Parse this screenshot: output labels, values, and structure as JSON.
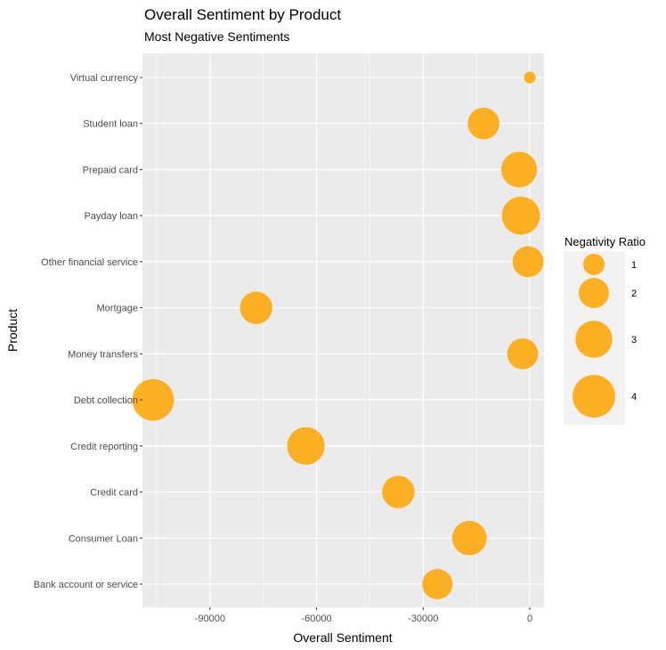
{
  "chart_data": {
    "type": "scatter",
    "title": "Overall Sentiment by Product",
    "subtitle": "Most Negative Sentiments",
    "xlabel": "Overall Sentiment",
    "ylabel": "Product",
    "xlim": [
      -109000,
      4000
    ],
    "xticks": [
      -90000,
      -60000,
      -30000,
      0
    ],
    "xtick_labels": [
      "-90000",
      "-60000",
      "-30000",
      "0"
    ],
    "grid": true,
    "point_color": "#ffa500",
    "panel_color": "#ebebeb",
    "legend": {
      "title": "Negativity Ratio",
      "placement": "right",
      "entries": [
        {
          "label": "1",
          "value": 1
        },
        {
          "label": "2",
          "value": 2
        },
        {
          "label": "3",
          "value": 3
        },
        {
          "label": "4",
          "value": 4
        }
      ]
    },
    "categories": [
      "Bank account or service",
      "Consumer Loan",
      "Credit card",
      "Credit reporting",
      "Debt collection",
      "Money transfers",
      "Mortgage",
      "Other financial service",
      "Payday loan",
      "Prepaid card",
      "Student loan",
      "Virtual currency"
    ],
    "points": [
      {
        "category": "Bank account or service",
        "x": -26000,
        "ratio": 2.0
      },
      {
        "category": "Consumer Loan",
        "x": -17000,
        "ratio": 2.6
      },
      {
        "category": "Credit card",
        "x": -37000,
        "ratio": 2.3
      },
      {
        "category": "Credit reporting",
        "x": -63000,
        "ratio": 3.1
      },
      {
        "category": "Debt collection",
        "x": -106000,
        "ratio": 3.8
      },
      {
        "category": "Money transfers",
        "x": -2000,
        "ratio": 2.1
      },
      {
        "category": "Mortgage",
        "x": -77000,
        "ratio": 2.3
      },
      {
        "category": "Other financial service",
        "x": -500,
        "ratio": 2.1
      },
      {
        "category": "Payday loan",
        "x": -2500,
        "ratio": 3.2
      },
      {
        "category": "Prepaid card",
        "x": -3000,
        "ratio": 2.8
      },
      {
        "category": "Student loan",
        "x": -13000,
        "ratio": 2.2
      },
      {
        "category": "Virtual currency",
        "x": 0,
        "ratio": 0.3
      }
    ]
  }
}
